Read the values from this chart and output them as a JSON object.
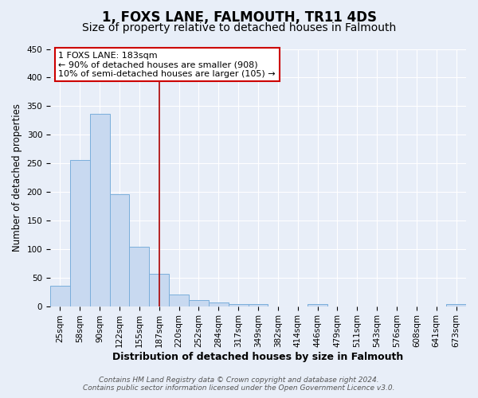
{
  "title": "1, FOXS LANE, FALMOUTH, TR11 4DS",
  "subtitle": "Size of property relative to detached houses in Falmouth",
  "xlabel": "Distribution of detached houses by size in Falmouth",
  "ylabel": "Number of detached properties",
  "bar_labels": [
    "25sqm",
    "58sqm",
    "90sqm",
    "122sqm",
    "155sqm",
    "187sqm",
    "220sqm",
    "252sqm",
    "284sqm",
    "317sqm",
    "349sqm",
    "382sqm",
    "414sqm",
    "446sqm",
    "479sqm",
    "511sqm",
    "543sqm",
    "576sqm",
    "608sqm",
    "641sqm",
    "673sqm"
  ],
  "bar_values": [
    36,
    256,
    336,
    196,
    104,
    57,
    20,
    11,
    7,
    4,
    3,
    0,
    0,
    3,
    0,
    0,
    0,
    0,
    0,
    0,
    3
  ],
  "bar_color": "#c8d9f0",
  "bar_edge_color": "#7aaedb",
  "vline_x": 5,
  "vline_color": "#aa0000",
  "annotation_title": "1 FOXS LANE: 183sqm",
  "annotation_line1": "← 90% of detached houses are smaller (908)",
  "annotation_line2": "10% of semi-detached houses are larger (105) →",
  "annotation_box_color": "#ffffff",
  "annotation_border_color": "#cc0000",
  "ylim": [
    0,
    450
  ],
  "yticks": [
    0,
    50,
    100,
    150,
    200,
    250,
    300,
    350,
    400,
    450
  ],
  "footer1": "Contains HM Land Registry data © Crown copyright and database right 2024.",
  "footer2": "Contains public sector information licensed under the Open Government Licence v3.0.",
  "figure_bg_color": "#e8eef8",
  "plot_bg_color": "#e8eef8",
  "grid_color": "#ffffff",
  "title_fontsize": 12,
  "subtitle_fontsize": 10,
  "tick_fontsize": 7.5,
  "ylabel_fontsize": 8.5,
  "xlabel_fontsize": 9,
  "annotation_fontsize": 8
}
